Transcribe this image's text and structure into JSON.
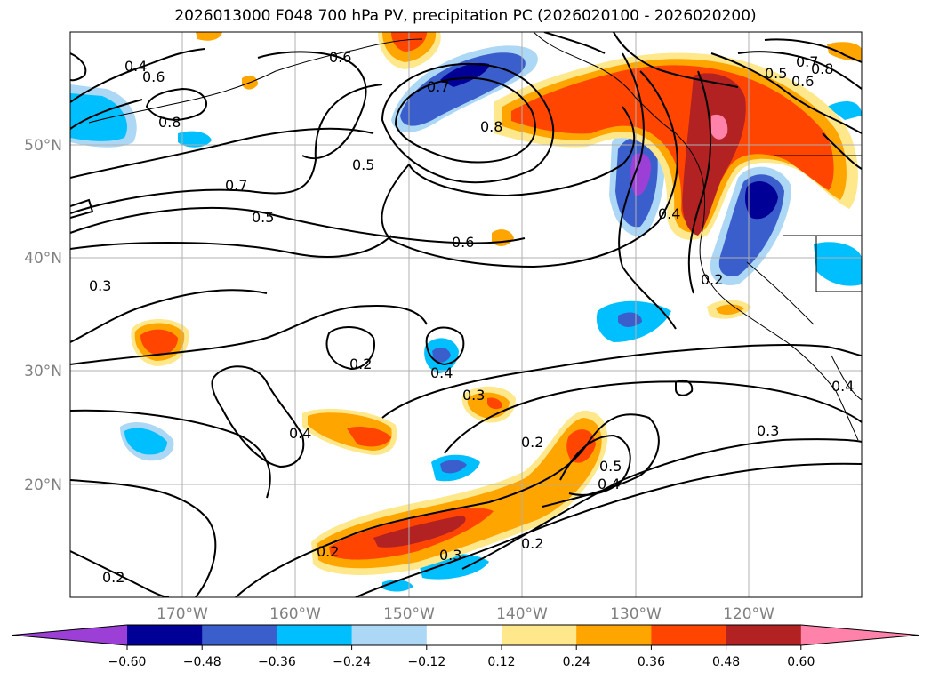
{
  "title": "2026013000 F048 700 hPa PV, precipitation PC (2026020100 - 2026020200)",
  "map": {
    "lat_labels": [
      "50°N",
      "40°N",
      "30°N",
      "20°N"
    ],
    "lon_labels": [
      "170°W",
      "160°W",
      "150°W",
      "140°W",
      "130°W",
      "120°W"
    ],
    "contour_labels": [
      {
        "text": "0.4"
      },
      {
        "text": "0.6"
      },
      {
        "text": "0.8"
      },
      {
        "text": "0.7"
      },
      {
        "text": "0.5"
      },
      {
        "text": "0.3"
      },
      {
        "text": "0.7"
      },
      {
        "text": "0.8"
      },
      {
        "text": "0.5"
      },
      {
        "text": "0.6"
      },
      {
        "text": "0.4"
      },
      {
        "text": "0.2"
      },
      {
        "text": "0.2"
      },
      {
        "text": "0.4"
      },
      {
        "text": "0.3"
      },
      {
        "text": "0.4"
      },
      {
        "text": "0.2"
      },
      {
        "text": "0.5"
      },
      {
        "text": "0.4"
      },
      {
        "text": "0.2"
      },
      {
        "text": "0.3"
      },
      {
        "text": "0.3"
      },
      {
        "text": "0.2"
      },
      {
        "text": "0.2"
      },
      {
        "text": "0.5"
      },
      {
        "text": "0.6"
      },
      {
        "text": "0.8"
      },
      {
        "text": "0.7"
      },
      {
        "text": "0.4"
      },
      {
        "text": "0.6"
      }
    ]
  },
  "colorbar": {
    "ticks": [
      "−0.60",
      "−0.48",
      "−0.36",
      "−0.24",
      "−0.12",
      "0.12",
      "0.24",
      "0.36",
      "0.48",
      "0.60"
    ],
    "colors": {
      "below": "#9b3fd6",
      "bins": [
        "#9b3fd6",
        "#000096",
        "#3a5fcd",
        "#00bfff",
        "#add8f5",
        "#ffffff",
        "#ffe88c",
        "#ffa500",
        "#ff4500",
        "#b22222",
        "#ff82ab"
      ],
      "above": "#ff82ab"
    }
  }
}
